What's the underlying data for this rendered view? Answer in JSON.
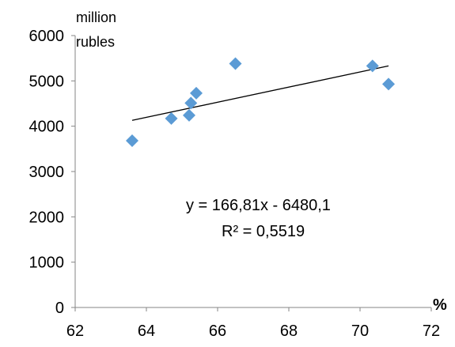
{
  "chart_data": {
    "type": "scatter",
    "xlabel": "%",
    "ylabel_lines": [
      "million",
      "rubles"
    ],
    "xlim": [
      62,
      72
    ],
    "ylim": [
      0,
      6000
    ],
    "x_ticks": [
      62,
      64,
      66,
      68,
      70,
      72
    ],
    "y_ticks": [
      0,
      1000,
      2000,
      3000,
      4000,
      5000,
      6000
    ],
    "grid": false,
    "series": [
      {
        "x": [
          63.6,
          64.7,
          65.2,
          65.25,
          65.4,
          66.5,
          70.35,
          70.8
        ],
        "y": [
          3680,
          4170,
          4240,
          4510,
          4730,
          5380,
          5330,
          4930
        ]
      }
    ],
    "trendline": {
      "slope": 166.81,
      "intercept": -6480.1,
      "x_range": [
        63.6,
        70.8
      ]
    },
    "annotations": {
      "equation": "y = 166,81x - 6480,1",
      "r_squared": "R² = 0,5519"
    },
    "colors": {
      "marker": "#5b9bd5",
      "trendline": "#000000",
      "axis": "#868686"
    }
  }
}
